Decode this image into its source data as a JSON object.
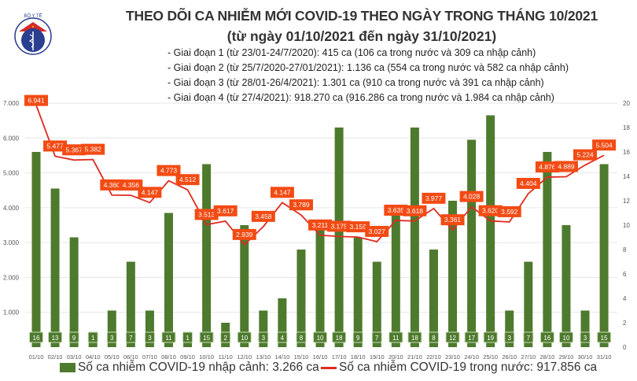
{
  "header": {
    "title": "THEO DÕI CA NHIỄM MỚI COVID-19 THEO NGÀY TRONG THÁNG 10/2021",
    "subtitle": "(từ ngày 01/10/2021 đến ngày 31/10/2021)",
    "logo_text": "BỘ Y TẾ - MINISTRY OF HEALTH",
    "phases": [
      "- Giai đoạn 1 (từ 23/01-24/7/2020): 415 ca (106 ca trong nước và 309 ca nhập cảnh)",
      "- Giai đoạn 2 (từ 25/7/2020-27/01/2021): 1.136 ca (554 ca trong nước và 582 ca nhập cảnh)",
      "- Giai đoạn 3 (từ 28/01-26/4/2021): 1.301 ca (910 ca trong nước và 391 ca nhập cảnh)",
      "- Giai đoạn 4 (từ 27/4/2021): 918.270 ca (916.286 ca trong nước và 1.984 ca nhập cảnh)"
    ]
  },
  "chart_data": {
    "type": "bar+line",
    "title": "THEO DÕI CA NHIỄM MỚI COVID-19 THEO NGÀY TRONG THÁNG 10/2021",
    "categories": [
      "01/10",
      "02/10",
      "03/10",
      "04/10",
      "05/10",
      "06/10",
      "07/10",
      "08/10",
      "09/10",
      "10/10",
      "11/10",
      "12/10",
      "13/10",
      "14/10",
      "15/10",
      "16/10",
      "17/10",
      "18/10",
      "19/10",
      "20/10",
      "21/10",
      "22/10",
      "23/10",
      "24/10",
      "25/10",
      "26/10",
      "27/10",
      "28/10",
      "29/10",
      "30/10",
      "31/10"
    ],
    "series": [
      {
        "name": "Số ca nhiễm COVID-19 nhập cảnh: 3.266 ca",
        "type": "bar",
        "axis": "right",
        "color": "#4e7a2e",
        "values": [
          16,
          13,
          9,
          1,
          3,
          7,
          3,
          11,
          1,
          15,
          2,
          10,
          3,
          4,
          8,
          10,
          18,
          9,
          7,
          11,
          18,
          8,
          12,
          17,
          19,
          3,
          7,
          16,
          10,
          3,
          15
        ]
      },
      {
        "name": "Số ca nhiễm COVID-19 trong nước: 917.856 ca",
        "type": "line",
        "axis": "left",
        "color": "#e02a20",
        "label_color": "#f24b14",
        "values": [
          6941,
          5477,
          5367,
          5382,
          4360,
          4356,
          4147,
          4773,
          4512,
          3513,
          3617,
          2939,
          3458,
          4147,
          3789,
          3211,
          3175,
          3159,
          3027,
          3635,
          3618,
          3977,
          3361,
          4028,
          3620,
          3592,
          4404,
          4876,
          4889,
          5224,
          5504
        ]
      }
    ],
    "left_axis": {
      "ylim": [
        0,
        7000
      ],
      "ticks": [
        "1.000",
        "2.000",
        "3.000",
        "4.000",
        "5.000",
        "6.000",
        "7.000"
      ]
    },
    "right_axis": {
      "ylim": [
        0,
        20
      ],
      "ticks": [
        "0",
        "2",
        "4",
        "6",
        "8",
        "10",
        "12",
        "14",
        "16",
        "18",
        "20"
      ]
    },
    "grid": true,
    "legend_position": "bottom"
  }
}
